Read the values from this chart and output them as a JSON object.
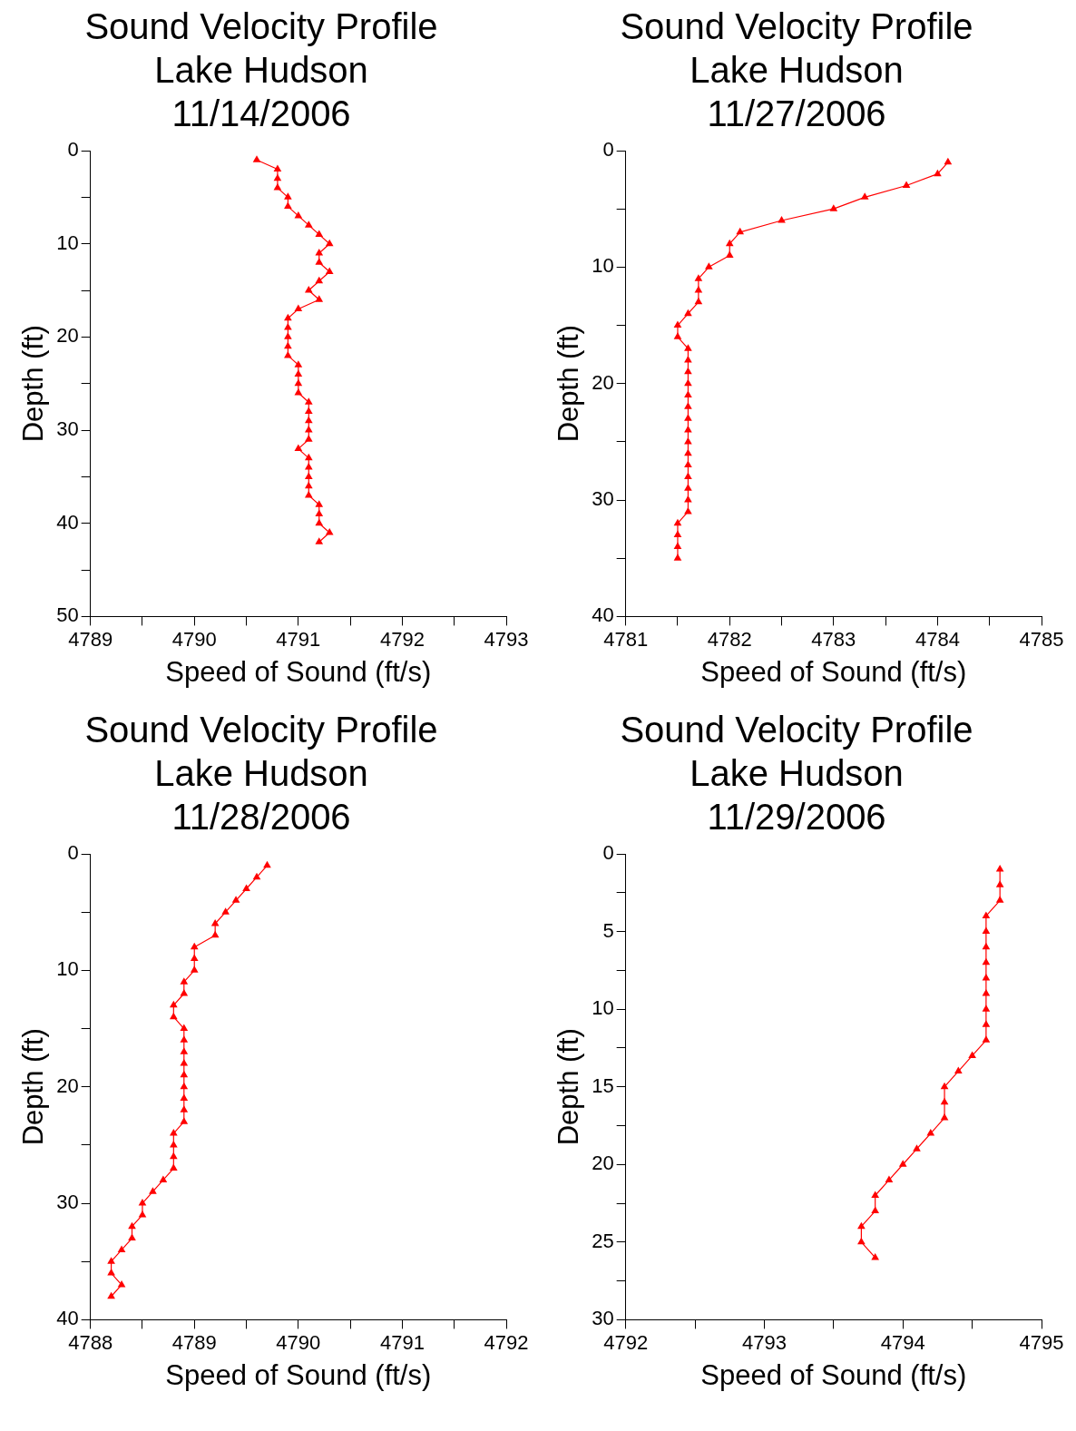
{
  "chart_data": [
    {
      "type": "line",
      "title": "Sound Velocity Profile\nLake Hudson\n11/14/2006",
      "xlabel": "Speed of Sound (ft/s)",
      "ylabel": "Depth (ft)",
      "xlim": [
        4789,
        4793
      ],
      "xticks": [
        4789,
        {
          "value": 4789.5,
          "label": null
        },
        4790,
        {
          "value": 4790.5,
          "label": null
        },
        4791,
        {
          "value": 4791.5,
          "label": null
        },
        4792,
        {
          "value": 4792.5,
          "label": null
        },
        4793
      ],
      "ylim": [
        50,
        0
      ],
      "yticks": [
        0,
        {
          "value": 5,
          "label": null
        },
        10,
        {
          "value": 15,
          "label": null
        },
        20,
        {
          "value": 25,
          "label": null
        },
        30,
        {
          "value": 35,
          "label": null
        },
        40,
        {
          "value": 45,
          "label": null
        },
        50
      ],
      "marker": "triangle",
      "series": [
        {
          "color": "#ff0000",
          "x": [
            4790.6,
            4790.8,
            4790.8,
            4790.8,
            4790.9,
            4790.9,
            4791.0,
            4791.1,
            4791.2,
            4791.3,
            4791.2,
            4791.2,
            4791.3,
            4791.2,
            4791.1,
            4791.2,
            4791.0,
            4790.9,
            4790.9,
            4790.9,
            4790.9,
            4790.9,
            4791.0,
            4791.0,
            4791.0,
            4791.0,
            4791.1,
            4791.1,
            4791.1,
            4791.1,
            4791.1,
            4791.0,
            4791.1,
            4791.1,
            4791.1,
            4791.1,
            4791.1,
            4791.2,
            4791.2,
            4791.2,
            4791.3,
            4791.2
          ],
          "values": [
            1,
            2,
            3,
            4,
            5,
            6,
            7,
            8,
            9,
            10,
            11,
            12,
            13,
            14,
            15,
            16,
            17,
            18,
            19,
            20,
            21,
            22,
            23,
            24,
            25,
            26,
            27,
            28,
            29,
            30,
            31,
            32,
            33,
            34,
            35,
            36,
            37,
            38,
            39,
            40,
            41,
            42
          ]
        }
      ]
    },
    {
      "type": "line",
      "title": "Sound Velocity Profile\nLake Hudson\n11/27/2006",
      "xlabel": "Speed of Sound (ft/s)",
      "ylabel": "Depth (ft)",
      "xlim": [
        4781,
        4785
      ],
      "xticks": [
        4781,
        {
          "value": 4781.5,
          "label": null
        },
        4782,
        {
          "value": 4782.5,
          "label": null
        },
        4783,
        {
          "value": 4783.5,
          "label": null
        },
        4784,
        {
          "value": 4784.5,
          "label": null
        },
        4785
      ],
      "ylim": [
        40,
        0
      ],
      "yticks": [
        0,
        {
          "value": 5,
          "label": null
        },
        10,
        {
          "value": 15,
          "label": null
        },
        20,
        {
          "value": 25,
          "label": null
        },
        30,
        {
          "value": 35,
          "label": null
        },
        40
      ],
      "marker": "triangle",
      "series": [
        {
          "color": "#ff0000",
          "x": [
            4784.1,
            4784.0,
            4783.7,
            4783.3,
            4783.0,
            4782.5,
            4782.1,
            4782.0,
            4782.0,
            4781.8,
            4781.7,
            4781.7,
            4781.7,
            4781.6,
            4781.5,
            4781.5,
            4781.6,
            4781.6,
            4781.6,
            4781.6,
            4781.6,
            4781.6,
            4781.6,
            4781.6,
            4781.6,
            4781.6,
            4781.6,
            4781.6,
            4781.6,
            4781.6,
            4781.6,
            4781.5,
            4781.5,
            4781.5,
            4781.5
          ],
          "values": [
            1,
            2,
            3,
            4,
            5,
            6,
            7,
            8,
            9,
            10,
            11,
            12,
            13,
            14,
            15,
            16,
            17,
            18,
            19,
            20,
            21,
            22,
            23,
            24,
            25,
            26,
            27,
            28,
            29,
            30,
            31,
            32,
            33,
            34,
            35
          ]
        }
      ]
    },
    {
      "type": "line",
      "title": "Sound Velocity Profile\nLake Hudson\n11/28/2006",
      "xlabel": "Speed of Sound (ft/s)",
      "ylabel": "Depth (ft)",
      "xlim": [
        4788,
        4792
      ],
      "xticks": [
        4788,
        {
          "value": 4788.5,
          "label": null
        },
        4789,
        {
          "value": 4789.5,
          "label": null
        },
        4790,
        {
          "value": 4790.5,
          "label": null
        },
        4791,
        {
          "value": 4791.5,
          "label": null
        },
        4792
      ],
      "ylim": [
        40,
        0
      ],
      "yticks": [
        0,
        {
          "value": 5,
          "label": null
        },
        10,
        {
          "value": 15,
          "label": null
        },
        20,
        {
          "value": 25,
          "label": null
        },
        30,
        {
          "value": 35,
          "label": null
        },
        40
      ],
      "marker": "triangle",
      "series": [
        {
          "color": "#ff0000",
          "x": [
            4789.7,
            4789.6,
            4789.5,
            4789.4,
            4789.3,
            4789.2,
            4789.2,
            4789.0,
            4789.0,
            4789.0,
            4788.9,
            4788.9,
            4788.8,
            4788.8,
            4788.9,
            4788.9,
            4788.9,
            4788.9,
            4788.9,
            4788.9,
            4788.9,
            4788.9,
            4788.9,
            4788.8,
            4788.8,
            4788.8,
            4788.8,
            4788.7,
            4788.6,
            4788.5,
            4788.5,
            4788.4,
            4788.4,
            4788.3,
            4788.2,
            4788.2,
            4788.3,
            4788.2
          ],
          "values": [
            1,
            2,
            3,
            4,
            5,
            6,
            7,
            8,
            9,
            10,
            11,
            12,
            13,
            14,
            15,
            16,
            17,
            18,
            19,
            20,
            21,
            22,
            23,
            24,
            25,
            26,
            27,
            28,
            29,
            30,
            31,
            32,
            33,
            34,
            35,
            36,
            37,
            38
          ]
        }
      ]
    },
    {
      "type": "line",
      "title": "Sound Velocity Profile\nLake Hudson\n11/29/2006",
      "xlabel": "Speed of Sound (ft/s)",
      "ylabel": "Depth (ft)",
      "xlim": [
        4792,
        4795
      ],
      "xticks": [
        4792,
        {
          "value": 4792.5,
          "label": null
        },
        4793,
        {
          "value": 4793.5,
          "label": null
        },
        4794,
        {
          "value": 4794.5,
          "label": null
        },
        4795
      ],
      "ylim": [
        30,
        0
      ],
      "yticks": [
        0,
        {
          "value": 2.5,
          "label": null
        },
        5,
        {
          "value": 7.5,
          "label": null
        },
        10,
        {
          "value": 12.5,
          "label": null
        },
        15,
        {
          "value": 17.5,
          "label": null
        },
        20,
        {
          "value": 22.5,
          "label": null
        },
        25,
        {
          "value": 27.5,
          "label": null
        },
        30
      ],
      "marker": "triangle",
      "series": [
        {
          "color": "#ff0000",
          "x": [
            4794.7,
            4794.7,
            4794.7,
            4794.6,
            4794.6,
            4794.6,
            4794.6,
            4794.6,
            4794.6,
            4794.6,
            4794.6,
            4794.6,
            4794.5,
            4794.4,
            4794.3,
            4794.3,
            4794.3,
            4794.2,
            4794.1,
            4794.0,
            4793.9,
            4793.8,
            4793.8,
            4793.7,
            4793.7,
            4793.8
          ],
          "values": [
            1,
            2,
            3,
            4,
            5,
            6,
            7,
            8,
            9,
            10,
            11,
            12,
            13,
            14,
            15,
            16,
            17,
            18,
            19,
            20,
            21,
            22,
            23,
            24,
            25,
            26
          ]
        }
      ]
    }
  ]
}
